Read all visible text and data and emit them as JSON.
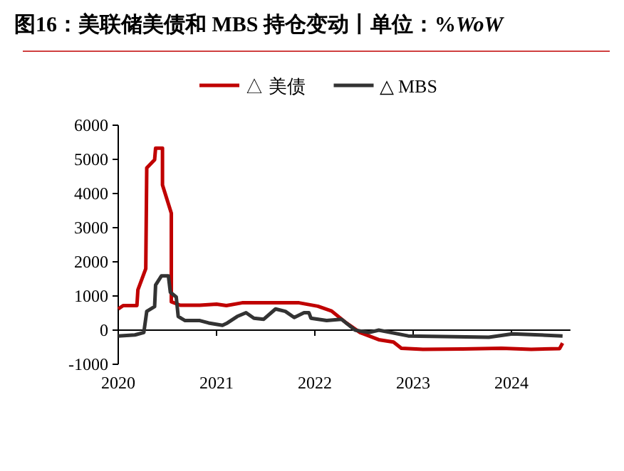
{
  "chart_data": {
    "type": "line",
    "title": "图16：美联储美债和 MBS 持仓变动丨单位：%*WoW*",
    "xlim": [
      2020,
      2024.6
    ],
    "xticks": [
      2020,
      2021,
      2022,
      2023,
      2024
    ],
    "ylim": [
      -1000,
      6000
    ],
    "yticks": [
      -1000,
      0,
      1000,
      2000,
      3000,
      4000,
      5000,
      6000
    ],
    "grid": false,
    "legend": "top",
    "marker": "none",
    "line_style": "solid",
    "series": [
      {
        "name": "△ 美债",
        "color": "#c00000",
        "x": [
          2020.0,
          2020.05,
          2020.19,
          2020.2,
          2020.28,
          2020.29,
          2020.37,
          2020.38,
          2020.45,
          2020.45,
          2020.54,
          2020.54,
          2020.63,
          2020.83,
          2021.0,
          2021.1,
          2021.26,
          2021.4,
          2021.84,
          2022.03,
          2022.17,
          2022.32,
          2022.46,
          2022.65,
          2022.8,
          2022.88,
          2023.1,
          2023.5,
          2023.9,
          2024.2,
          2024.49,
          2024.52
        ],
        "values": [
          620,
          720,
          720,
          1180,
          1800,
          4750,
          4990,
          5330,
          5330,
          4250,
          3420,
          830,
          730,
          730,
          760,
          720,
          800,
          800,
          800,
          700,
          560,
          210,
          -70,
          -280,
          -350,
          -530,
          -560,
          -550,
          -530,
          -560,
          -540,
          -380
        ]
      },
      {
        "name": "△ MBS",
        "color": "#333333",
        "x": [
          2020.0,
          2020.17,
          2020.26,
          2020.29,
          2020.37,
          2020.38,
          2020.44,
          2020.51,
          2020.53,
          2020.59,
          2020.61,
          2020.68,
          2020.83,
          2020.92,
          2021.06,
          2021.11,
          2021.21,
          2021.3,
          2021.38,
          2021.48,
          2021.6,
          2021.7,
          2021.79,
          2021.89,
          2021.94,
          2021.96,
          2022.12,
          2022.27,
          2022.41,
          2022.55,
          2022.65,
          2022.95,
          2023.77,
          2024.01,
          2024.52
        ],
        "values": [
          -170,
          -140,
          -70,
          550,
          690,
          1320,
          1590,
          1590,
          1110,
          970,
          400,
          280,
          280,
          210,
          140,
          210,
          400,
          510,
          350,
          320,
          620,
          550,
          370,
          510,
          510,
          350,
          280,
          320,
          0,
          -70,
          0,
          -170,
          -210,
          -110,
          -170
        ]
      }
    ]
  }
}
